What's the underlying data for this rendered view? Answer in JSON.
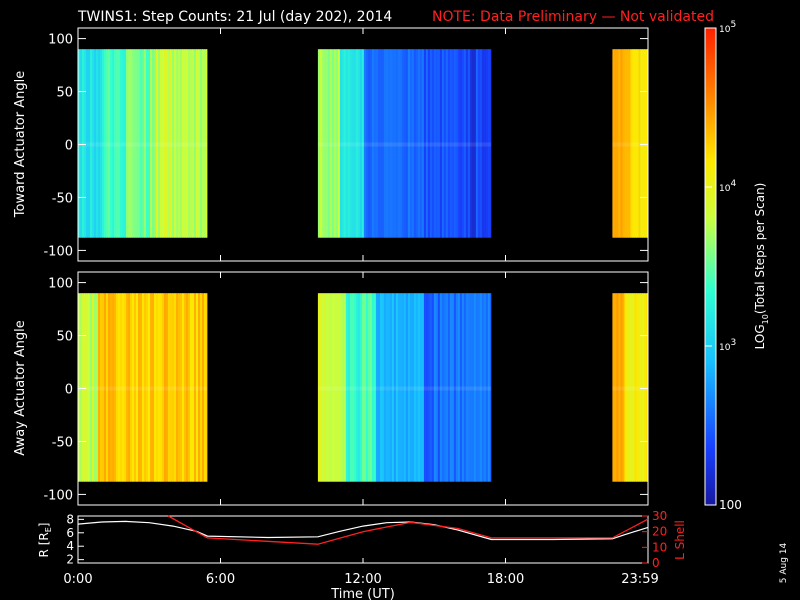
{
  "title": {
    "main": "TWINS1: Step Counts: 21 Jul (day 202), 2014",
    "note": "NOTE: Data Preliminary — Not validated"
  },
  "side_date": "5 Aug 14",
  "colors": {
    "note": "#ff2020",
    "red_line": "#ff2020",
    "white_line": "#ffffff"
  },
  "chart_data": [
    {
      "type": "heatmap",
      "panel": "toward",
      "ylabel": "Toward Actuator Angle",
      "ylim": [
        -110,
        110
      ],
      "yticks": [
        100,
        50,
        0,
        -50,
        -100
      ],
      "angle_range": [
        -88,
        90
      ],
      "data_blocks_ut_hours": [
        [
          0.0,
          5.45
        ],
        [
          10.1,
          17.4
        ],
        [
          22.5,
          24.0
        ]
      ],
      "coverage": "no data between blocks"
    },
    {
      "type": "heatmap",
      "panel": "away",
      "ylabel": "Away Actuator Angle",
      "ylim": [
        -110,
        110
      ],
      "yticks": [
        100,
        50,
        0,
        -50,
        -100
      ],
      "angle_range": [
        -88,
        90
      ],
      "data_blocks_ut_hours": [
        [
          0.0,
          5.45
        ],
        [
          10.1,
          17.4
        ],
        [
          22.5,
          24.0
        ]
      ],
      "coverage": "no data between blocks"
    },
    {
      "type": "colorbar",
      "label_prefix": "LOG",
      "label_sub": "10",
      "label_suffix": "(Total Steps per Scan)",
      "scale": "log",
      "range": [
        100,
        100000
      ],
      "tick_labels": [
        {
          "value": 100000,
          "base": "10",
          "exp": "5"
        },
        {
          "value": 10000,
          "base": "10",
          "exp": "4"
        },
        {
          "value": 1000,
          "base": "10",
          "exp": "3"
        },
        {
          "value": 100,
          "text": "100"
        }
      ]
    },
    {
      "type": "line",
      "panel": "orbit",
      "x_unit": "hours UT",
      "xlim": [
        0,
        24
      ],
      "xlabel": "Time (UT)",
      "xtick_labels": [
        {
          "value": 0,
          "label": "0:00"
        },
        {
          "value": 6,
          "label": "6:00"
        },
        {
          "value": 12,
          "label": "12:00"
        },
        {
          "value": 18,
          "label": "18:00"
        },
        {
          "value": 24,
          "label": "23:59"
        }
      ],
      "y_left": {
        "label": "R [R",
        "label_sub": "E",
        "label_end": "]",
        "ylim": [
          1.5,
          8.5
        ],
        "ticks": [
          8,
          6,
          4,
          2
        ]
      },
      "y_right": {
        "label": "L Shell",
        "ylim": [
          0,
          30
        ],
        "ticks": [
          30,
          20,
          10,
          0
        ]
      },
      "series": [
        {
          "axis": "left",
          "color": "white",
          "x": [
            0,
            1,
            2,
            3,
            4,
            5,
            5.45,
            8,
            10.1,
            11,
            12,
            13,
            14,
            15,
            16,
            17.4,
            20,
            22.5,
            23,
            24
          ],
          "y": [
            7.3,
            7.6,
            7.7,
            7.5,
            7.0,
            6.2,
            5.5,
            5.3,
            5.4,
            6.2,
            7.0,
            7.5,
            7.6,
            7.2,
            6.4,
            5.0,
            5.0,
            5.1,
            5.7,
            6.8
          ]
        },
        {
          "axis": "right",
          "color": "red",
          "x": [
            3.8,
            5.45,
            10.1,
            12,
            14,
            16,
            17.4,
            22.5,
            24
          ],
          "y": [
            30,
            16,
            12,
            20,
            26,
            22,
            16,
            16,
            28
          ]
        }
      ]
    }
  ]
}
